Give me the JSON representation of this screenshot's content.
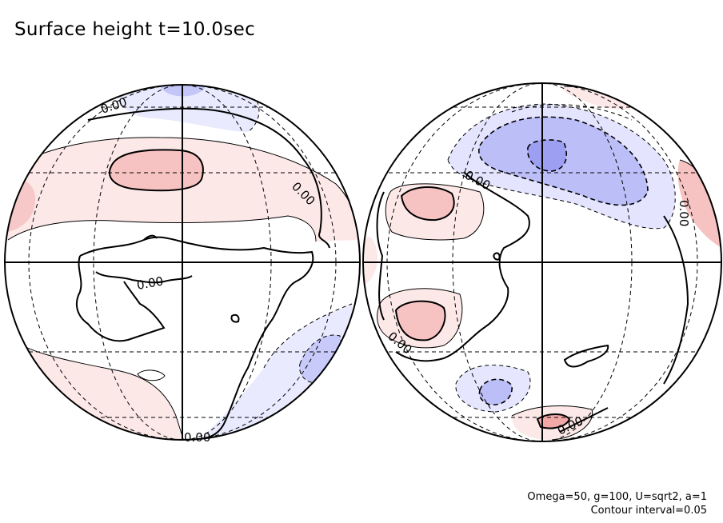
{
  "title": "Surface height t=10.0sec",
  "params_note": "Omega=50, g=100, U=sqrt2, a=1",
  "interval_note": "Contour interval=0.05",
  "contour_label": "0.00",
  "colors": {
    "positive_light": "#fde8e8",
    "positive_mid": "#f9c8c8",
    "positive_strong": "#f3a8a8",
    "negative_light": "#eaeaff",
    "negative_mid": "#c4c6f8",
    "negative_strong": "#9da0f2",
    "contour": "#000000",
    "grid": "#000000"
  }
}
